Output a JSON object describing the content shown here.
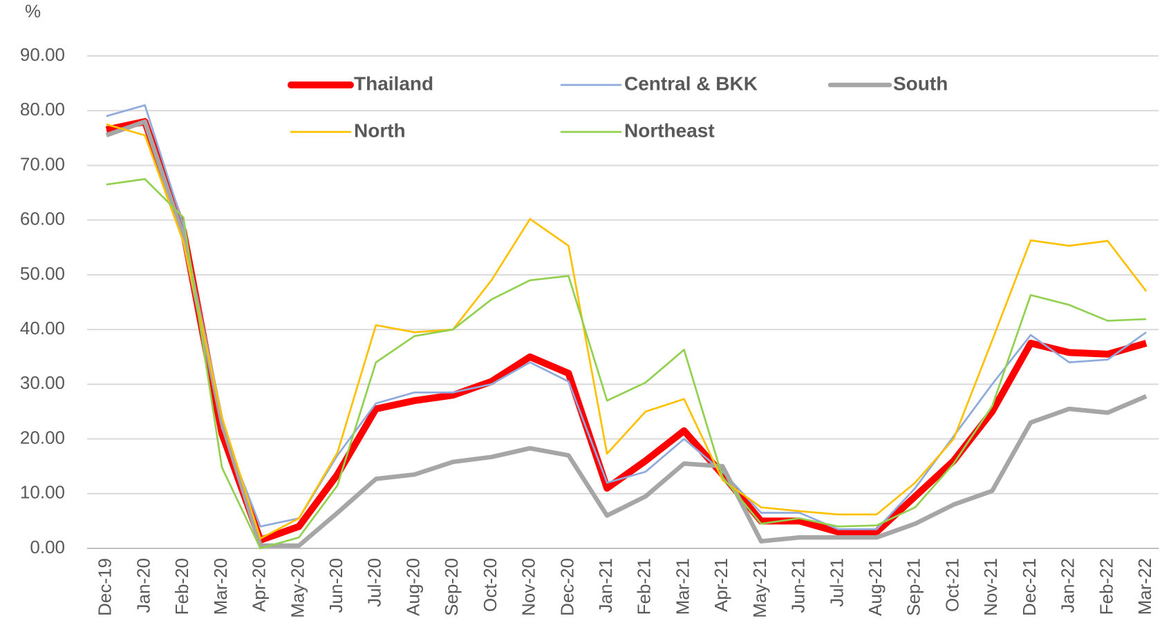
{
  "chart_data": {
    "type": "line",
    "y_label": "%",
    "categories": [
      "Dec-19",
      "Jan-20",
      "Feb-20",
      "Mar-20",
      "Apr-20",
      "May-20",
      "Jun-20",
      "Jul-20",
      "Aug-20",
      "Sep-20",
      "Oct-20",
      "Nov-20",
      "Dec-20",
      "Jan-21",
      "Feb-21",
      "Mar-21",
      "Apr-21",
      "May-21",
      "Jun-21",
      "Jul-21",
      "Aug-21",
      "Sep-21",
      "Oct-21",
      "Nov-21",
      "Dec-21",
      "Jan-22",
      "Feb-22",
      "Mar-22"
    ],
    "series": [
      {
        "name": "Thailand",
        "color": "#ff0000",
        "values": [
          76.5,
          78,
          58,
          21,
          1.5,
          4,
          13.5,
          25.5,
          27,
          28,
          30.5,
          35,
          32,
          11,
          16,
          21.5,
          13.5,
          5,
          5,
          3,
          3,
          9.5,
          16,
          25,
          37.5,
          35.8,
          35.5,
          37.5
        ]
      },
      {
        "name": "Central & BKK",
        "color": "#8faadc",
        "values": [
          79,
          81,
          59,
          22,
          4,
          5.5,
          17,
          26.5,
          28.5,
          28.5,
          30,
          34,
          30.5,
          12,
          14,
          20,
          14,
          6.5,
          6.5,
          3.5,
          3.5,
          11,
          20.5,
          30,
          39,
          34,
          34.5,
          39.5
        ]
      },
      {
        "name": "South",
        "color": "#a6a6a6",
        "values": [
          75.5,
          78,
          57,
          23,
          0.5,
          0.5,
          6.5,
          12.7,
          13.5,
          15.8,
          16.7,
          18.3,
          17,
          6,
          9.5,
          15.5,
          15,
          1.3,
          2,
          2,
          2,
          4.5,
          8,
          10.5,
          23,
          25.5,
          24.8,
          27.8
        ]
      },
      {
        "name": "North",
        "color": "#ffc000",
        "values": [
          77.5,
          75.5,
          56,
          24,
          1.8,
          5.5,
          17.5,
          40.8,
          39.5,
          40,
          49,
          60.2,
          55.3,
          17.3,
          25,
          27.3,
          12.5,
          7.5,
          6.8,
          6.2,
          6.2,
          12,
          20,
          38,
          56.3,
          55.3,
          56.2,
          47
        ]
      },
      {
        "name": "Northeast",
        "color": "#92d050",
        "values": [
          66.5,
          67.5,
          60.5,
          14.8,
          0,
          2,
          11.5,
          34,
          38.8,
          40,
          45.5,
          49,
          49.8,
          27,
          30.3,
          36.3,
          13,
          4.5,
          5.5,
          4,
          4.2,
          7.5,
          15.5,
          26,
          46.3,
          44.5,
          41.6,
          41.9
        ]
      }
    ],
    "ylim": [
      0,
      90
    ],
    "yticks": [
      {
        "value": 0,
        "label": "0.00"
      },
      {
        "value": 10,
        "label": "10.00"
      },
      {
        "value": 20,
        "label": "20.00"
      },
      {
        "value": 30,
        "label": "30.00"
      },
      {
        "value": 40,
        "label": "40.00"
      },
      {
        "value": 50,
        "label": "50.00"
      },
      {
        "value": 60,
        "label": "60.00"
      },
      {
        "value": 70,
        "label": "70.00"
      },
      {
        "value": 80,
        "label": "80.00"
      },
      {
        "value": 90,
        "label": "90.00"
      }
    ],
    "grid": true
  }
}
